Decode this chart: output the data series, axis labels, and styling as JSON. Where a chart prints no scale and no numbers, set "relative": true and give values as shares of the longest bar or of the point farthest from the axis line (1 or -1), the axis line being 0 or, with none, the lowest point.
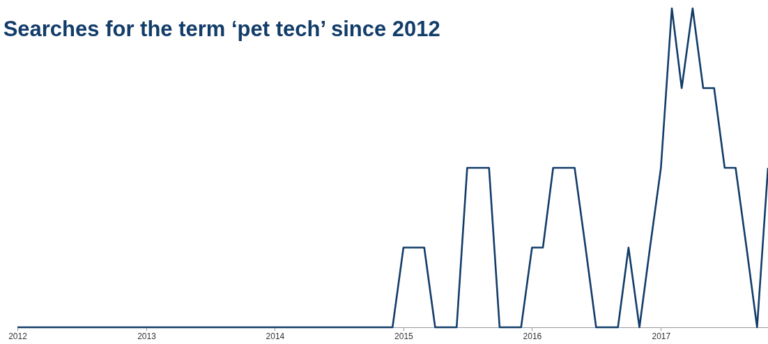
{
  "chart_data": {
    "type": "line",
    "title": "Searches for the term ‘pet tech’ since 2012",
    "relative": true,
    "color": "#123c69",
    "x": [
      "2012-01",
      "2012-02",
      "2012-03",
      "2012-04",
      "2012-05",
      "2012-06",
      "2012-07",
      "2012-08",
      "2012-09",
      "2012-10",
      "2012-11",
      "2012-12",
      "2013-01",
      "2013-02",
      "2013-03",
      "2013-04",
      "2013-05",
      "2013-06",
      "2013-07",
      "2013-08",
      "2013-09",
      "2013-10",
      "2013-11",
      "2013-12",
      "2014-01",
      "2014-02",
      "2014-03",
      "2014-04",
      "2014-05",
      "2014-06",
      "2014-07",
      "2014-08",
      "2014-09",
      "2014-10",
      "2014-11",
      "2014-12",
      "2015-01",
      "2015-02",
      "2015-03",
      "2015-04",
      "2015-05",
      "2015-06",
      "2015-07",
      "2015-08",
      "2015-09",
      "2015-10",
      "2015-11",
      "2015-12",
      "2016-01",
      "2016-02",
      "2016-03",
      "2016-04",
      "2016-05",
      "2016-06",
      "2016-07",
      "2016-08",
      "2016-09",
      "2016-10",
      "2016-11",
      "2016-12",
      "2017-01",
      "2017-02",
      "2017-03",
      "2017-04",
      "2017-05",
      "2017-06",
      "2017-07",
      "2017-08",
      "2017-09",
      "2017-10",
      "2017-11"
    ],
    "values": [
      0,
      0,
      0,
      0,
      0,
      0,
      0,
      0,
      0,
      0,
      0,
      0,
      0,
      0,
      0,
      0,
      0,
      0,
      0,
      0,
      0,
      0,
      0,
      0,
      0,
      0,
      0,
      0,
      0,
      0,
      0,
      0,
      0,
      0,
      0,
      0,
      0.25,
      0.25,
      0.25,
      0,
      0,
      0,
      0.5,
      0.5,
      0.5,
      0,
      0,
      0,
      0.25,
      0.25,
      0.5,
      0.5,
      0.5,
      0.25,
      0,
      0,
      0,
      0.25,
      0,
      0.25,
      0.5,
      1,
      0.75,
      1,
      0.75,
      0.75,
      0.5,
      0.5,
      0.25,
      0,
      0.5
    ],
    "xlim": [
      "2012-01",
      "2017-11"
    ],
    "xticks": [
      "2012",
      "2013",
      "2014",
      "2015",
      "2016",
      "2017"
    ]
  }
}
